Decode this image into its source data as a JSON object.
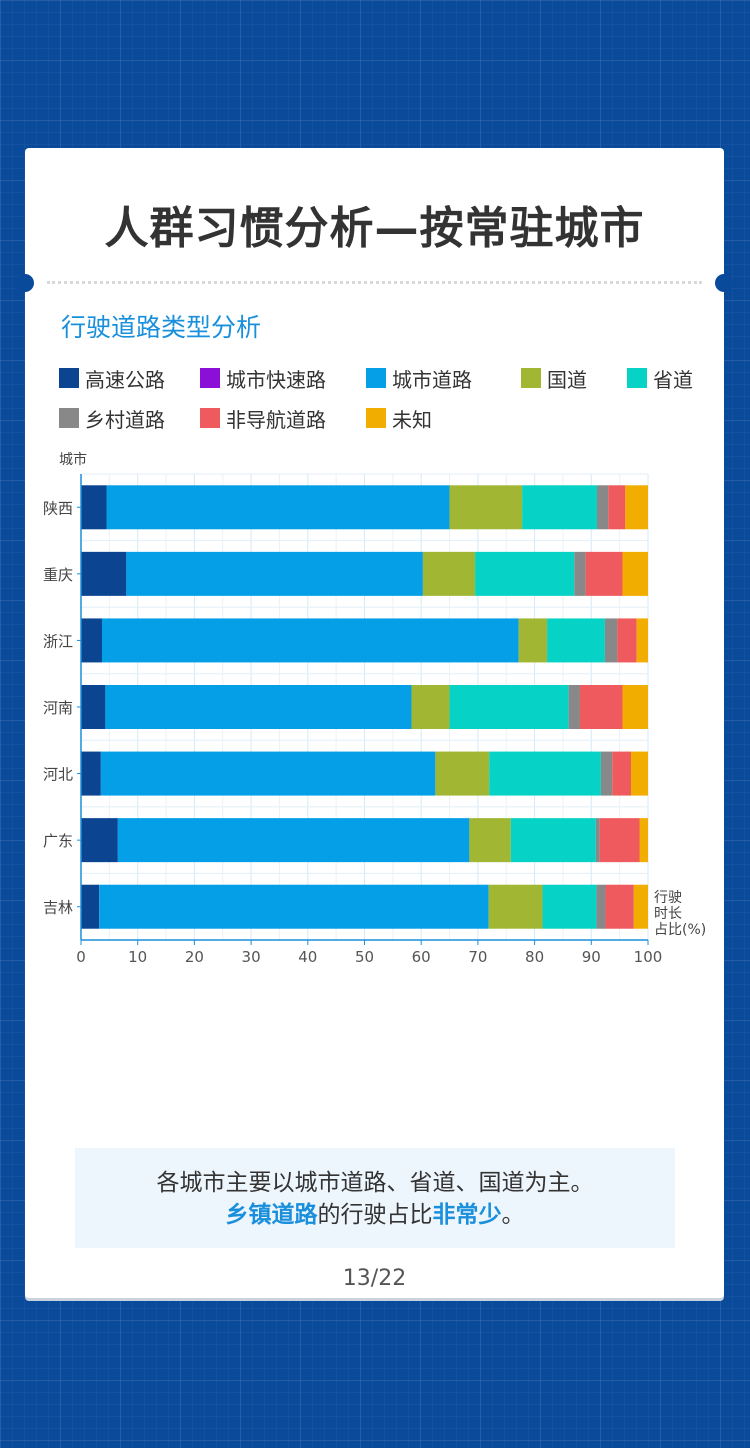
{
  "page": {
    "title": "人群习惯分析—按常驻城市",
    "section_title": "行驶道路类型分析",
    "summary_line1": "各城市主要以城市道路、省道、国道为主。",
    "summary_hl1": "乡镇道路",
    "summary_mid": "的行驶占比",
    "summary_hl2": "非常少",
    "summary_end": "。",
    "page_number": "13/22"
  },
  "chart_data": {
    "type": "bar",
    "orientation": "horizontal",
    "stacked": true,
    "ylabel": "城市",
    "xlabel": "行驶时长占比(%)",
    "xlim": [
      0,
      100
    ],
    "xticks": [
      0,
      10,
      20,
      30,
      40,
      50,
      60,
      70,
      80,
      90,
      100
    ],
    "grid": true,
    "legend_position": "top",
    "categories": [
      "陕西",
      "重庆",
      "浙江",
      "河南",
      "河北",
      "广东",
      "吉林"
    ],
    "series": [
      {
        "name": "高速公路",
        "color": "#0b4591",
        "values": [
          4.5,
          8.0,
          3.7,
          4.3,
          3.5,
          6.5,
          3.2
        ]
      },
      {
        "name": "城市快速路",
        "color": "#8b0fd6",
        "values": [
          0,
          0,
          0,
          0,
          0,
          0,
          0
        ]
      },
      {
        "name": "城市道路",
        "color": "#049fe6",
        "values": [
          60.5,
          52.3,
          73.5,
          54.0,
          59.0,
          62.0,
          68.7
        ]
      },
      {
        "name": "国道",
        "color": "#a1b734",
        "values": [
          12.8,
          9.2,
          5.0,
          6.7,
          9.5,
          7.3,
          9.5
        ]
      },
      {
        "name": "省道",
        "color": "#07d2c6",
        "values": [
          13.2,
          17.5,
          10.2,
          21.0,
          19.7,
          15.0,
          9.5
        ]
      },
      {
        "name": "乡村道路",
        "color": "#888888",
        "values": [
          2.0,
          2.0,
          2.2,
          2.0,
          2.0,
          0.7,
          1.6
        ]
      },
      {
        "name": "非导航道路",
        "color": "#ee5a5e",
        "values": [
          3.0,
          6.5,
          3.4,
          7.5,
          3.3,
          7.0,
          5.0
        ]
      },
      {
        "name": "未知",
        "color": "#f1ad00",
        "values": [
          4.0,
          4.5,
          2.0,
          4.5,
          3.0,
          1.5,
          2.5
        ]
      }
    ]
  }
}
